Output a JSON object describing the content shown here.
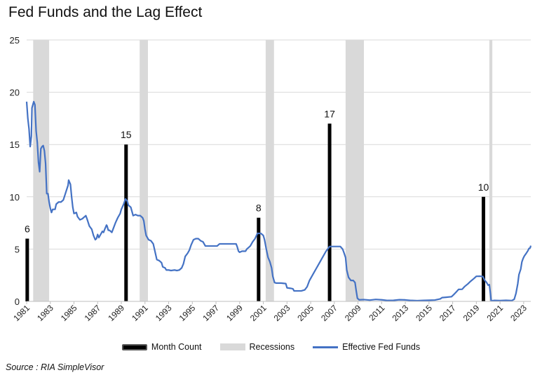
{
  "chart_data": {
    "type": "bar",
    "title": "Fed Funds and the Lag Effect",
    "source": "Source : RIA SimpleVisor",
    "ylim": [
      0,
      25
    ],
    "yticks": [
      "0",
      "5",
      "10",
      "15",
      "20",
      "25"
    ],
    "xlim": [
      1981,
      2023.6
    ],
    "xticks": [
      "1981",
      "1983",
      "1985",
      "1987",
      "1989",
      "1991",
      "1993",
      "1995",
      "1997",
      "1999",
      "2001",
      "2003",
      "2005",
      "2007",
      "2009",
      "2011",
      "2013",
      "2015",
      "2017",
      "2019",
      "2021",
      "2023"
    ],
    "grid": true,
    "legend_position": "bottom",
    "legend": [
      "Month Count",
      "Recessions",
      "Effective Fed Funds"
    ],
    "colors": {
      "month_count": "#000000",
      "recessions": "#d9d9d9",
      "fed_funds": "#4472c4"
    },
    "month_count": [
      {
        "x": 1981.05,
        "value": 6,
        "label": "6"
      },
      {
        "x": 1989.4,
        "value": 15,
        "label": "15"
      },
      {
        "x": 2000.6,
        "value": 8,
        "label": "8"
      },
      {
        "x": 2006.6,
        "value": 17,
        "label": "17"
      },
      {
        "x": 2019.6,
        "value": 10,
        "label": "10"
      }
    ],
    "recessions": [
      [
        1981.55,
        1982.9
      ],
      [
        1990.55,
        1991.25
      ],
      [
        2001.2,
        2001.9
      ],
      [
        2007.95,
        2009.5
      ],
      [
        2020.1,
        2020.35
      ]
    ],
    "fed_funds": [
      [
        1981.0,
        19.1
      ],
      [
        1981.1,
        17.5
      ],
      [
        1981.2,
        16.5
      ],
      [
        1981.3,
        14.8
      ],
      [
        1981.4,
        15.8
      ],
      [
        1981.45,
        18.5
      ],
      [
        1981.6,
        19.1
      ],
      [
        1981.7,
        18.8
      ],
      [
        1981.8,
        16.3
      ],
      [
        1981.9,
        15.2
      ],
      [
        1982.0,
        13.3
      ],
      [
        1982.1,
        12.4
      ],
      [
        1982.2,
        14.6
      ],
      [
        1982.3,
        14.8
      ],
      [
        1982.4,
        14.9
      ],
      [
        1982.5,
        14.4
      ],
      [
        1982.6,
        13.2
      ],
      [
        1982.7,
        10.3
      ],
      [
        1982.8,
        10.3
      ],
      [
        1982.9,
        9.5
      ],
      [
        1983.0,
        8.9
      ],
      [
        1983.1,
        8.5
      ],
      [
        1983.2,
        8.8
      ],
      [
        1983.4,
        8.8
      ],
      [
        1983.5,
        9.3
      ],
      [
        1983.6,
        9.4
      ],
      [
        1983.7,
        9.5
      ],
      [
        1983.9,
        9.5
      ],
      [
        1984.1,
        9.7
      ],
      [
        1984.3,
        10.4
      ],
      [
        1984.5,
        11.1
      ],
      [
        1984.55,
        11.6
      ],
      [
        1984.7,
        11.2
      ],
      [
        1984.8,
        10.0
      ],
      [
        1984.9,
        9.0
      ],
      [
        1985.0,
        8.4
      ],
      [
        1985.2,
        8.5
      ],
      [
        1985.3,
        8.1
      ],
      [
        1985.5,
        7.8
      ],
      [
        1985.7,
        7.9
      ],
      [
        1985.9,
        8.1
      ],
      [
        1986.0,
        8.2
      ],
      [
        1986.1,
        7.9
      ],
      [
        1986.3,
        7.2
      ],
      [
        1986.5,
        6.9
      ],
      [
        1986.65,
        6.3
      ],
      [
        1986.8,
        5.9
      ],
      [
        1986.9,
        6.0
      ],
      [
        1987.0,
        6.4
      ],
      [
        1987.1,
        6.1
      ],
      [
        1987.2,
        6.3
      ],
      [
        1987.4,
        6.7
      ],
      [
        1987.5,
        6.6
      ],
      [
        1987.6,
        6.9
      ],
      [
        1987.75,
        7.3
      ],
      [
        1987.8,
        7.2
      ],
      [
        1987.9,
        6.8
      ],
      [
        1988.0,
        6.8
      ],
      [
        1988.2,
        6.6
      ],
      [
        1988.3,
        6.9
      ],
      [
        1988.5,
        7.5
      ],
      [
        1988.7,
        8.0
      ],
      [
        1988.9,
        8.4
      ],
      [
        1989.0,
        8.8
      ],
      [
        1989.2,
        9.3
      ],
      [
        1989.35,
        9.8
      ],
      [
        1989.5,
        9.6
      ],
      [
        1989.6,
        9.2
      ],
      [
        1989.8,
        9.0
      ],
      [
        1989.9,
        8.6
      ],
      [
        1990.0,
        8.2
      ],
      [
        1990.2,
        8.3
      ],
      [
        1990.4,
        8.2
      ],
      [
        1990.6,
        8.2
      ],
      [
        1990.8,
        8.0
      ],
      [
        1990.9,
        7.7
      ],
      [
        1991.0,
        6.9
      ],
      [
        1991.1,
        6.3
      ],
      [
        1991.3,
        5.9
      ],
      [
        1991.5,
        5.8
      ],
      [
        1991.7,
        5.5
      ],
      [
        1991.8,
        5.0
      ],
      [
        1992.0,
        4.0
      ],
      [
        1992.2,
        3.9
      ],
      [
        1992.4,
        3.7
      ],
      [
        1992.5,
        3.3
      ],
      [
        1992.7,
        3.2
      ],
      [
        1992.8,
        3.0
      ],
      [
        1993.0,
        3.0
      ],
      [
        1993.2,
        2.95
      ],
      [
        1993.5,
        3.0
      ],
      [
        1993.7,
        2.95
      ],
      [
        1993.9,
        3.0
      ],
      [
        1994.1,
        3.2
      ],
      [
        1994.25,
        3.6
      ],
      [
        1994.4,
        4.3
      ],
      [
        1994.6,
        4.6
      ],
      [
        1994.75,
        4.9
      ],
      [
        1994.9,
        5.4
      ],
      [
        1995.1,
        5.9
      ],
      [
        1995.3,
        6.0
      ],
      [
        1995.5,
        6.0
      ],
      [
        1995.7,
        5.8
      ],
      [
        1995.9,
        5.7
      ],
      [
        1996.0,
        5.5
      ],
      [
        1996.1,
        5.3
      ],
      [
        1996.4,
        5.3
      ],
      [
        1996.7,
        5.3
      ],
      [
        1996.9,
        5.3
      ],
      [
        1997.1,
        5.3
      ],
      [
        1997.3,
        5.5
      ],
      [
        1997.6,
        5.5
      ],
      [
        1997.9,
        5.5
      ],
      [
        1998.2,
        5.5
      ],
      [
        1998.5,
        5.5
      ],
      [
        1998.7,
        5.5
      ],
      [
        1998.8,
        5.2
      ],
      [
        1998.9,
        4.8
      ],
      [
        1999.0,
        4.7
      ],
      [
        1999.2,
        4.8
      ],
      [
        1999.5,
        4.8
      ],
      [
        1999.6,
        5.0
      ],
      [
        1999.8,
        5.2
      ],
      [
        1999.9,
        5.3
      ],
      [
        2000.1,
        5.7
      ],
      [
        2000.3,
        6.0
      ],
      [
        2000.5,
        6.5
      ],
      [
        2000.8,
        6.5
      ],
      [
        2001.0,
        6.3
      ],
      [
        2001.1,
        5.9
      ],
      [
        2001.25,
        5.0
      ],
      [
        2001.4,
        4.2
      ],
      [
        2001.55,
        3.8
      ],
      [
        2001.7,
        3.2
      ],
      [
        2001.8,
        2.4
      ],
      [
        2001.95,
        1.8
      ],
      [
        2002.1,
        1.75
      ],
      [
        2002.5,
        1.75
      ],
      [
        2002.9,
        1.7
      ],
      [
        2003.0,
        1.3
      ],
      [
        2003.3,
        1.25
      ],
      [
        2003.5,
        1.2
      ],
      [
        2003.6,
        1.0
      ],
      [
        2003.9,
        1.0
      ],
      [
        2004.2,
        1.0
      ],
      [
        2004.5,
        1.1
      ],
      [
        2004.7,
        1.4
      ],
      [
        2004.9,
        2.0
      ],
      [
        2005.1,
        2.4
      ],
      [
        2005.3,
        2.8
      ],
      [
        2005.5,
        3.2
      ],
      [
        2005.7,
        3.6
      ],
      [
        2005.9,
        4.0
      ],
      [
        2006.1,
        4.4
      ],
      [
        2006.3,
        4.8
      ],
      [
        2006.5,
        5.1
      ],
      [
        2006.6,
        5.25
      ],
      [
        2006.9,
        5.25
      ],
      [
        2007.2,
        5.25
      ],
      [
        2007.5,
        5.25
      ],
      [
        2007.7,
        5.0
      ],
      [
        2007.8,
        4.7
      ],
      [
        2007.95,
        4.2
      ],
      [
        2008.05,
        3.0
      ],
      [
        2008.2,
        2.3
      ],
      [
        2008.4,
        2.0
      ],
      [
        2008.6,
        2.0
      ],
      [
        2008.75,
        1.8
      ],
      [
        2008.85,
        1.0
      ],
      [
        2008.95,
        0.3
      ],
      [
        2009.1,
        0.15
      ],
      [
        2009.5,
        0.17
      ],
      [
        2010.0,
        0.12
      ],
      [
        2010.5,
        0.19
      ],
      [
        2011.0,
        0.15
      ],
      [
        2011.5,
        0.09
      ],
      [
        2012.0,
        0.1
      ],
      [
        2012.5,
        0.16
      ],
      [
        2013.0,
        0.14
      ],
      [
        2013.5,
        0.09
      ],
      [
        2014.0,
        0.07
      ],
      [
        2014.5,
        0.09
      ],
      [
        2015.0,
        0.11
      ],
      [
        2015.5,
        0.13
      ],
      [
        2015.95,
        0.24
      ],
      [
        2016.1,
        0.36
      ],
      [
        2016.5,
        0.4
      ],
      [
        2016.9,
        0.45
      ],
      [
        2017.1,
        0.66
      ],
      [
        2017.3,
        0.9
      ],
      [
        2017.5,
        1.15
      ],
      [
        2017.8,
        1.16
      ],
      [
        2018.0,
        1.41
      ],
      [
        2018.3,
        1.69
      ],
      [
        2018.5,
        1.91
      ],
      [
        2018.8,
        2.19
      ],
      [
        2019.0,
        2.4
      ],
      [
        2019.3,
        2.41
      ],
      [
        2019.55,
        2.38
      ],
      [
        2019.7,
        2.04
      ],
      [
        2019.85,
        1.83
      ],
      [
        2020.0,
        1.55
      ],
      [
        2020.1,
        1.6
      ],
      [
        2020.2,
        0.65
      ],
      [
        2020.25,
        0.05
      ],
      [
        2020.5,
        0.09
      ],
      [
        2021.0,
        0.08
      ],
      [
        2021.5,
        0.1
      ],
      [
        2022.0,
        0.08
      ],
      [
        2022.2,
        0.2
      ],
      [
        2022.35,
        0.77
      ],
      [
        2022.5,
        1.68
      ],
      [
        2022.6,
        2.56
      ],
      [
        2022.75,
        3.08
      ],
      [
        2022.85,
        3.78
      ],
      [
        2022.95,
        4.1
      ],
      [
        2023.05,
        4.33
      ],
      [
        2023.2,
        4.57
      ],
      [
        2023.35,
        4.83
      ],
      [
        2023.45,
        5.06
      ],
      [
        2023.55,
        5.12
      ],
      [
        2023.6,
        5.33
      ]
    ]
  }
}
